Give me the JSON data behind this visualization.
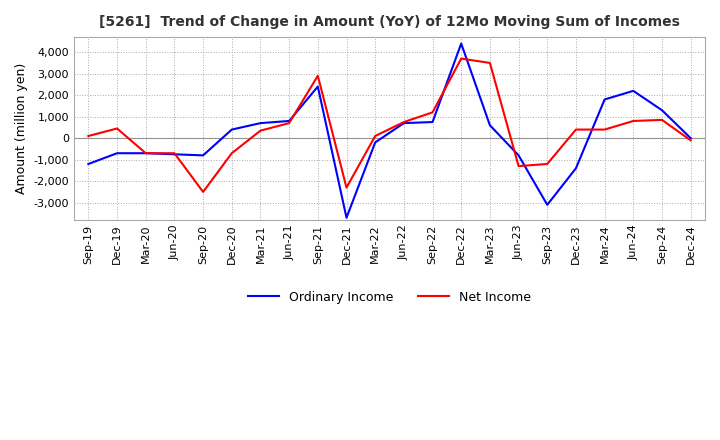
{
  "title": "[5261]  Trend of Change in Amount (YoY) of 12Mo Moving Sum of Incomes",
  "ylabel": "Amount (million yen)",
  "x_labels": [
    "Sep-19",
    "Dec-19",
    "Mar-20",
    "Jun-20",
    "Sep-20",
    "Dec-20",
    "Mar-21",
    "Jun-21",
    "Sep-21",
    "Dec-21",
    "Mar-22",
    "Jun-22",
    "Sep-22",
    "Dec-22",
    "Mar-23",
    "Jun-23",
    "Sep-23",
    "Dec-23",
    "Mar-24",
    "Jun-24",
    "Sep-24",
    "Dec-24"
  ],
  "ordinary_income": [
    -1200,
    -700,
    -700,
    -750,
    -800,
    400,
    700,
    800,
    2400,
    -3700,
    -200,
    700,
    750,
    4400,
    600,
    -800,
    -3100,
    -1400,
    1800,
    2200,
    1300,
    0
  ],
  "net_income": [
    100,
    450,
    -700,
    -700,
    -2500,
    -700,
    350,
    700,
    2900,
    -2300,
    100,
    750,
    1200,
    3700,
    3500,
    -1300,
    -1200,
    400,
    400,
    800,
    850,
    -100
  ],
  "ordinary_color": "#0000ff",
  "net_color": "#ff0000",
  "ylim": [
    -3800,
    4700
  ],
  "yticks": [
    -3000,
    -2000,
    -1000,
    0,
    1000,
    2000,
    3000,
    4000
  ],
  "background_color": "#ffffff",
  "grid_color": "#aaaaaa"
}
